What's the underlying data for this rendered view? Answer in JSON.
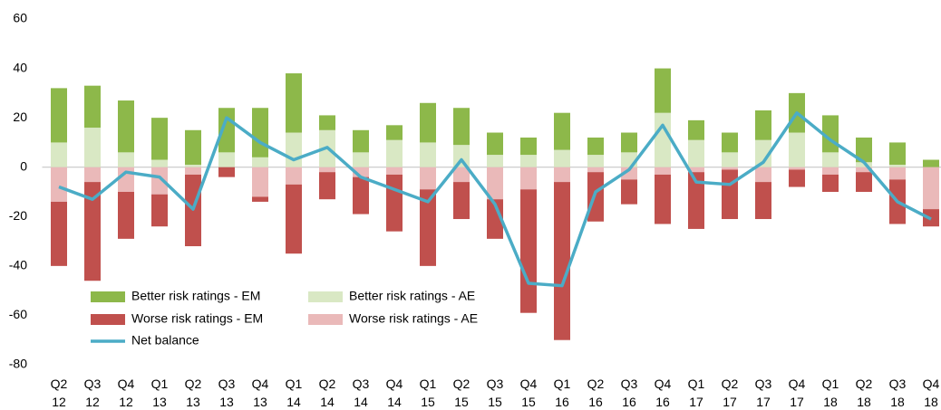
{
  "chart_data": {
    "type": "bar",
    "categories": [
      "Q2 12",
      "Q3 12",
      "Q4 12",
      "Q1 13",
      "Q2 13",
      "Q3 13",
      "Q4 13",
      "Q1 14",
      "Q2 14",
      "Q3 14",
      "Q4 14",
      "Q1 15",
      "Q2 15",
      "Q3 15",
      "Q4 15",
      "Q1 16",
      "Q2 16",
      "Q3 16",
      "Q4 16",
      "Q1 17",
      "Q2 17",
      "Q3 17",
      "Q4 17",
      "Q1 18",
      "Q2 18",
      "Q3 18",
      "Q4 18"
    ],
    "series": [
      {
        "name": "Better risk ratings - EM",
        "color": "#8db84a",
        "values": [
          22,
          17,
          21,
          17,
          14,
          18,
          20,
          24,
          6,
          9,
          6,
          16,
          15,
          9,
          7,
          15,
          7,
          8,
          18,
          8,
          8,
          12,
          16,
          15,
          10,
          9,
          3
        ]
      },
      {
        "name": "Better risk ratings - AE",
        "color": "#d9e8c4",
        "values": [
          10,
          16,
          6,
          3,
          1,
          6,
          4,
          14,
          15,
          6,
          11,
          10,
          9,
          5,
          5,
          7,
          5,
          6,
          22,
          11,
          6,
          11,
          14,
          6,
          2,
          1,
          0
        ]
      },
      {
        "name": "Worse risk ratings - EM",
        "color": "#c0504d",
        "values": [
          -26,
          -40,
          -19,
          -13,
          -29,
          -4,
          -2,
          -28,
          -11,
          -15,
          -23,
          -31,
          -15,
          -16,
          -50,
          -64,
          -20,
          -10,
          -20,
          -23,
          -20,
          -15,
          -7,
          -7,
          -8,
          -18,
          -7
        ]
      },
      {
        "name": "Worse risk ratings - AE",
        "color": "#eab9b9",
        "values": [
          -14,
          -6,
          -10,
          -11,
          -3,
          0,
          -12,
          -7,
          -2,
          -4,
          -3,
          -9,
          -6,
          -13,
          -9,
          -6,
          -2,
          -5,
          -3,
          -2,
          -1,
          -6,
          -1,
          -3,
          -2,
          -5,
          -17
        ]
      },
      {
        "name": "Net balance",
        "color": "#4bacc6",
        "type": "line",
        "values": [
          -8,
          -13,
          -2,
          -4,
          -17,
          20,
          10,
          3,
          8,
          -4,
          -9,
          -14,
          3,
          -15,
          -47,
          -48,
          -10,
          -1,
          17,
          -6,
          -7,
          2,
          22,
          11,
          2,
          -14,
          -21
        ]
      }
    ],
    "ylim": [
      -80,
      60
    ],
    "yticks": [
      -80,
      -60,
      -40,
      -20,
      0,
      20,
      40,
      60
    ],
    "grid": false
  }
}
